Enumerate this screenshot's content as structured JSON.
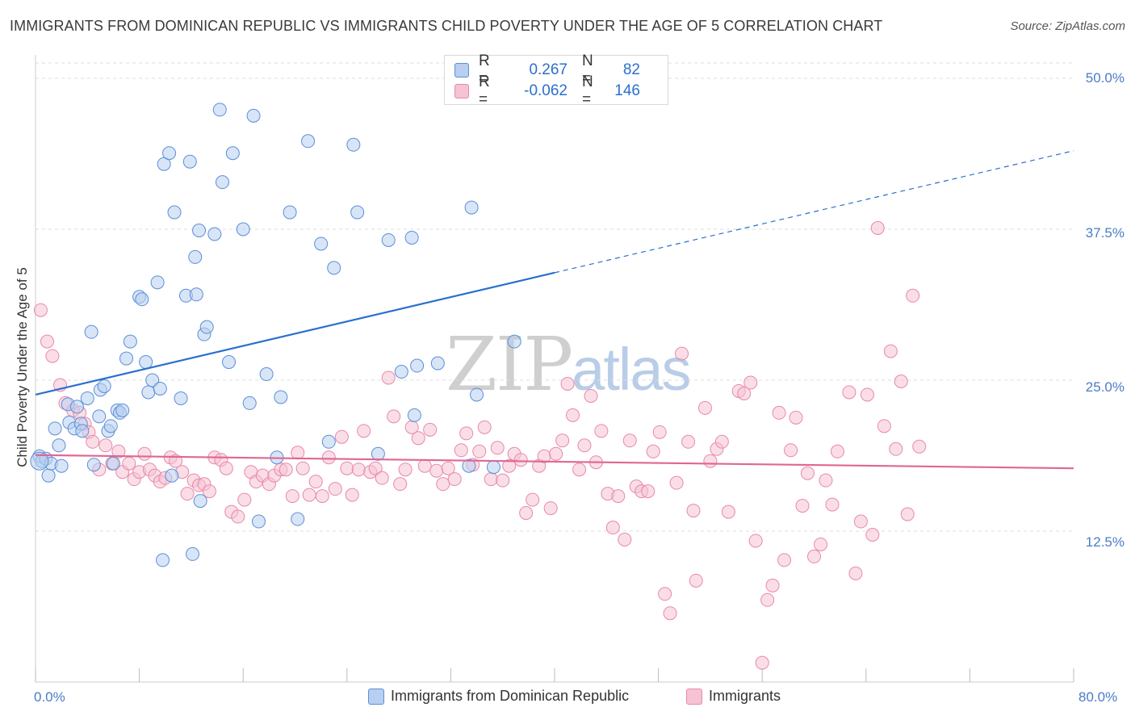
{
  "title": "IMMIGRANTS FROM DOMINICAN REPUBLIC VS IMMIGRANTS CHILD POVERTY UNDER THE AGE OF 5 CORRELATION CHART",
  "source": "Source: ZipAtlas.com",
  "watermark": {
    "zip": "ZIP",
    "atlas": "atlas"
  },
  "colors": {
    "blue": "#5b8fd6",
    "blue_fill": "#b8cff0",
    "blue_line": "#2b6fcf",
    "pink": "#e889a8",
    "pink_fill": "#f5c3d3",
    "pink_line": "#e06693",
    "tick_text": "#4a7cc7",
    "grid": "#dddddd"
  },
  "legend_top": {
    "rows": [
      {
        "r_label": "R =",
        "r_value": "0.267",
        "n_label": "N =",
        "n_value": "82"
      },
      {
        "r_label": "R =",
        "r_value": "-0.062",
        "n_label": "N =",
        "n_value": "146"
      }
    ]
  },
  "legend_bottom": [
    "Immigrants from Dominican Republic",
    "Immigrants"
  ],
  "chart_data": {
    "type": "scatter",
    "ylabel": "Child Poverty Under the Age of 5",
    "xlim": [
      0,
      80
    ],
    "ylim": [
      0,
      50
    ],
    "x_tick_labels": [
      "0.0%",
      "80.0%"
    ],
    "y_tick_labels": [
      "50.0%",
      "37.5%",
      "25.0%",
      "12.5%"
    ],
    "y_ticks": [
      50,
      37.5,
      25,
      12.5
    ],
    "grid": "horizontal dashed",
    "legend_position": "top-center and bottom",
    "series": [
      {
        "name": "Immigrants from Dominican Republic",
        "color": "#5b8fd6",
        "trend": {
          "x": [
            0,
            40
          ],
          "y": [
            23.8,
            33.9
          ],
          "dashed_extension_to": [
            80,
            44.0
          ]
        },
        "points": [
          [
            0.3,
            18.7
          ],
          [
            0.5,
            18.3
          ],
          [
            0.8,
            18.5
          ],
          [
            1.0,
            17.1
          ],
          [
            1.2,
            18.1
          ],
          [
            1.5,
            21.0
          ],
          [
            1.8,
            19.6
          ],
          [
            2.0,
            17.9
          ],
          [
            2.5,
            23.0
          ],
          [
            2.6,
            21.5
          ],
          [
            3.0,
            21.0
          ],
          [
            3.2,
            22.8
          ],
          [
            3.5,
            21.4
          ],
          [
            3.6,
            20.8
          ],
          [
            4.0,
            23.5
          ],
          [
            4.3,
            29.0
          ],
          [
            4.5,
            18.0
          ],
          [
            4.9,
            22.0
          ],
          [
            5.0,
            24.2
          ],
          [
            5.3,
            24.5
          ],
          [
            5.6,
            20.8
          ],
          [
            5.8,
            21.2
          ],
          [
            6.0,
            18.1
          ],
          [
            6.3,
            22.5
          ],
          [
            6.5,
            22.3
          ],
          [
            6.7,
            22.5
          ],
          [
            7.0,
            26.8
          ],
          [
            7.3,
            28.2
          ],
          [
            8.0,
            31.9
          ],
          [
            8.2,
            31.7
          ],
          [
            8.5,
            26.5
          ],
          [
            8.7,
            24.0
          ],
          [
            9.0,
            25.0
          ],
          [
            9.4,
            33.1
          ],
          [
            9.6,
            24.3
          ],
          [
            9.8,
            10.1
          ],
          [
            9.9,
            42.9
          ],
          [
            10.3,
            43.8
          ],
          [
            10.7,
            38.9
          ],
          [
            10.5,
            17.1
          ],
          [
            11.2,
            23.5
          ],
          [
            11.6,
            32.0
          ],
          [
            11.9,
            43.1
          ],
          [
            12.1,
            10.6
          ],
          [
            12.3,
            35.2
          ],
          [
            12.4,
            32.1
          ],
          [
            12.6,
            37.4
          ],
          [
            12.7,
            15.0
          ],
          [
            13.0,
            28.8
          ],
          [
            13.2,
            29.4
          ],
          [
            13.8,
            37.1
          ],
          [
            14.2,
            47.4
          ],
          [
            14.4,
            41.4
          ],
          [
            14.9,
            26.5
          ],
          [
            15.2,
            43.8
          ],
          [
            16.0,
            37.5
          ],
          [
            16.5,
            23.1
          ],
          [
            16.8,
            46.9
          ],
          [
            17.2,
            13.3
          ],
          [
            17.8,
            25.5
          ],
          [
            18.6,
            18.6
          ],
          [
            18.9,
            23.6
          ],
          [
            19.6,
            38.9
          ],
          [
            20.2,
            13.5
          ],
          [
            21.0,
            44.8
          ],
          [
            22.0,
            36.3
          ],
          [
            22.6,
            19.9
          ],
          [
            23.0,
            34.3
          ],
          [
            24.5,
            44.5
          ],
          [
            24.8,
            38.9
          ],
          [
            26.4,
            18.9
          ],
          [
            27.2,
            36.6
          ],
          [
            28.2,
            25.7
          ],
          [
            29.0,
            36.8
          ],
          [
            29.2,
            22.1
          ],
          [
            29.4,
            26.2
          ],
          [
            31.0,
            26.4
          ],
          [
            33.4,
            17.9
          ],
          [
            33.6,
            39.3
          ],
          [
            34.0,
            23.8
          ],
          [
            35.3,
            17.8
          ],
          [
            36.9,
            28.2
          ]
        ]
      },
      {
        "name": "Immigrants",
        "color": "#e889a8",
        "trend": {
          "x": [
            0,
            80
          ],
          "y": [
            18.8,
            17.7
          ]
        },
        "points": [
          [
            0.4,
            30.8
          ],
          [
            0.9,
            28.2
          ],
          [
            1.3,
            27.0
          ],
          [
            1.9,
            24.6
          ],
          [
            2.3,
            23.1
          ],
          [
            2.9,
            22.5
          ],
          [
            3.4,
            22.3
          ],
          [
            3.8,
            21.4
          ],
          [
            4.1,
            20.7
          ],
          [
            4.4,
            19.9
          ],
          [
            4.9,
            17.6
          ],
          [
            5.4,
            19.6
          ],
          [
            5.9,
            18.1
          ],
          [
            6.4,
            19.1
          ],
          [
            6.7,
            17.4
          ],
          [
            7.2,
            18.1
          ],
          [
            7.6,
            16.8
          ],
          [
            8.0,
            17.4
          ],
          [
            8.4,
            18.9
          ],
          [
            8.8,
            17.6
          ],
          [
            9.2,
            17.1
          ],
          [
            9.6,
            16.6
          ],
          [
            10.0,
            16.9
          ],
          [
            10.4,
            18.6
          ],
          [
            10.8,
            18.3
          ],
          [
            11.3,
            17.4
          ],
          [
            11.7,
            15.6
          ],
          [
            12.2,
            16.7
          ],
          [
            12.6,
            16.3
          ],
          [
            13.0,
            16.4
          ],
          [
            13.4,
            15.8
          ],
          [
            13.8,
            18.6
          ],
          [
            14.3,
            18.4
          ],
          [
            14.7,
            17.7
          ],
          [
            15.1,
            14.1
          ],
          [
            15.6,
            13.7
          ],
          [
            16.1,
            15.1
          ],
          [
            16.6,
            17.4
          ],
          [
            17.0,
            16.6
          ],
          [
            17.5,
            17.1
          ],
          [
            18.0,
            16.4
          ],
          [
            18.4,
            17.1
          ],
          [
            18.9,
            17.6
          ],
          [
            19.3,
            17.6
          ],
          [
            19.8,
            15.4
          ],
          [
            20.2,
            19.0
          ],
          [
            20.6,
            17.7
          ],
          [
            21.1,
            15.5
          ],
          [
            21.6,
            16.6
          ],
          [
            22.1,
            15.4
          ],
          [
            22.6,
            18.6
          ],
          [
            23.1,
            16.0
          ],
          [
            23.6,
            20.3
          ],
          [
            24.0,
            17.7
          ],
          [
            24.4,
            15.5
          ],
          [
            24.9,
            17.6
          ],
          [
            25.3,
            20.8
          ],
          [
            25.8,
            17.4
          ],
          [
            26.2,
            17.7
          ],
          [
            26.7,
            16.9
          ],
          [
            27.2,
            25.2
          ],
          [
            27.6,
            22.0
          ],
          [
            28.1,
            16.4
          ],
          [
            28.5,
            17.6
          ],
          [
            29.0,
            21.1
          ],
          [
            29.5,
            20.2
          ],
          [
            30.0,
            17.9
          ],
          [
            30.4,
            20.9
          ],
          [
            30.9,
            17.5
          ],
          [
            31.4,
            16.4
          ],
          [
            31.8,
            17.7
          ],
          [
            32.3,
            16.8
          ],
          [
            32.8,
            19.2
          ],
          [
            33.2,
            20.6
          ],
          [
            33.7,
            18.0
          ],
          [
            34.2,
            19.1
          ],
          [
            34.6,
            21.1
          ],
          [
            35.1,
            16.8
          ],
          [
            35.6,
            19.4
          ],
          [
            36.0,
            16.7
          ],
          [
            36.5,
            17.9
          ],
          [
            36.9,
            18.9
          ],
          [
            37.4,
            18.4
          ],
          [
            37.8,
            14.0
          ],
          [
            38.3,
            15.1
          ],
          [
            38.8,
            17.9
          ],
          [
            39.2,
            18.7
          ],
          [
            39.7,
            14.4
          ],
          [
            40.1,
            18.9
          ],
          [
            40.6,
            20.0
          ],
          [
            41.0,
            24.7
          ],
          [
            41.4,
            22.1
          ],
          [
            41.9,
            17.6
          ],
          [
            42.3,
            19.6
          ],
          [
            42.8,
            23.7
          ],
          [
            43.2,
            18.2
          ],
          [
            43.6,
            20.8
          ],
          [
            44.1,
            15.6
          ],
          [
            44.5,
            12.8
          ],
          [
            44.9,
            15.4
          ],
          [
            45.4,
            11.8
          ],
          [
            45.8,
            20.0
          ],
          [
            46.3,
            16.2
          ],
          [
            46.7,
            15.8
          ],
          [
            47.2,
            15.8
          ],
          [
            47.6,
            19.1
          ],
          [
            48.1,
            20.7
          ],
          [
            48.5,
            7.3
          ],
          [
            48.9,
            5.7
          ],
          [
            49.4,
            16.5
          ],
          [
            49.8,
            27.2
          ],
          [
            50.3,
            19.9
          ],
          [
            50.7,
            14.2
          ],
          [
            50.9,
            8.4
          ],
          [
            51.6,
            22.7
          ],
          [
            52.0,
            18.3
          ],
          [
            52.5,
            19.3
          ],
          [
            52.9,
            19.9
          ],
          [
            53.4,
            14.1
          ],
          [
            54.2,
            24.1
          ],
          [
            54.6,
            23.9
          ],
          [
            55.1,
            24.8
          ],
          [
            55.5,
            11.7
          ],
          [
            56.0,
            1.6
          ],
          [
            56.4,
            6.8
          ],
          [
            56.8,
            8.0
          ],
          [
            57.3,
            22.3
          ],
          [
            57.7,
            10.1
          ],
          [
            58.2,
            19.2
          ],
          [
            58.6,
            21.9
          ],
          [
            59.1,
            14.6
          ],
          [
            59.5,
            17.3
          ],
          [
            60.0,
            10.4
          ],
          [
            60.5,
            11.4
          ],
          [
            60.9,
            16.7
          ],
          [
            61.4,
            14.7
          ],
          [
            61.8,
            19.1
          ],
          [
            62.7,
            24.0
          ],
          [
            63.2,
            9.0
          ],
          [
            63.6,
            13.3
          ],
          [
            64.1,
            23.8
          ],
          [
            64.5,
            12.2
          ],
          [
            64.9,
            37.6
          ],
          [
            65.4,
            21.2
          ],
          [
            65.9,
            27.4
          ],
          [
            66.3,
            19.3
          ],
          [
            66.7,
            24.9
          ],
          [
            67.2,
            13.9
          ],
          [
            67.6,
            32.0
          ],
          [
            68.1,
            19.5
          ]
        ]
      }
    ]
  }
}
